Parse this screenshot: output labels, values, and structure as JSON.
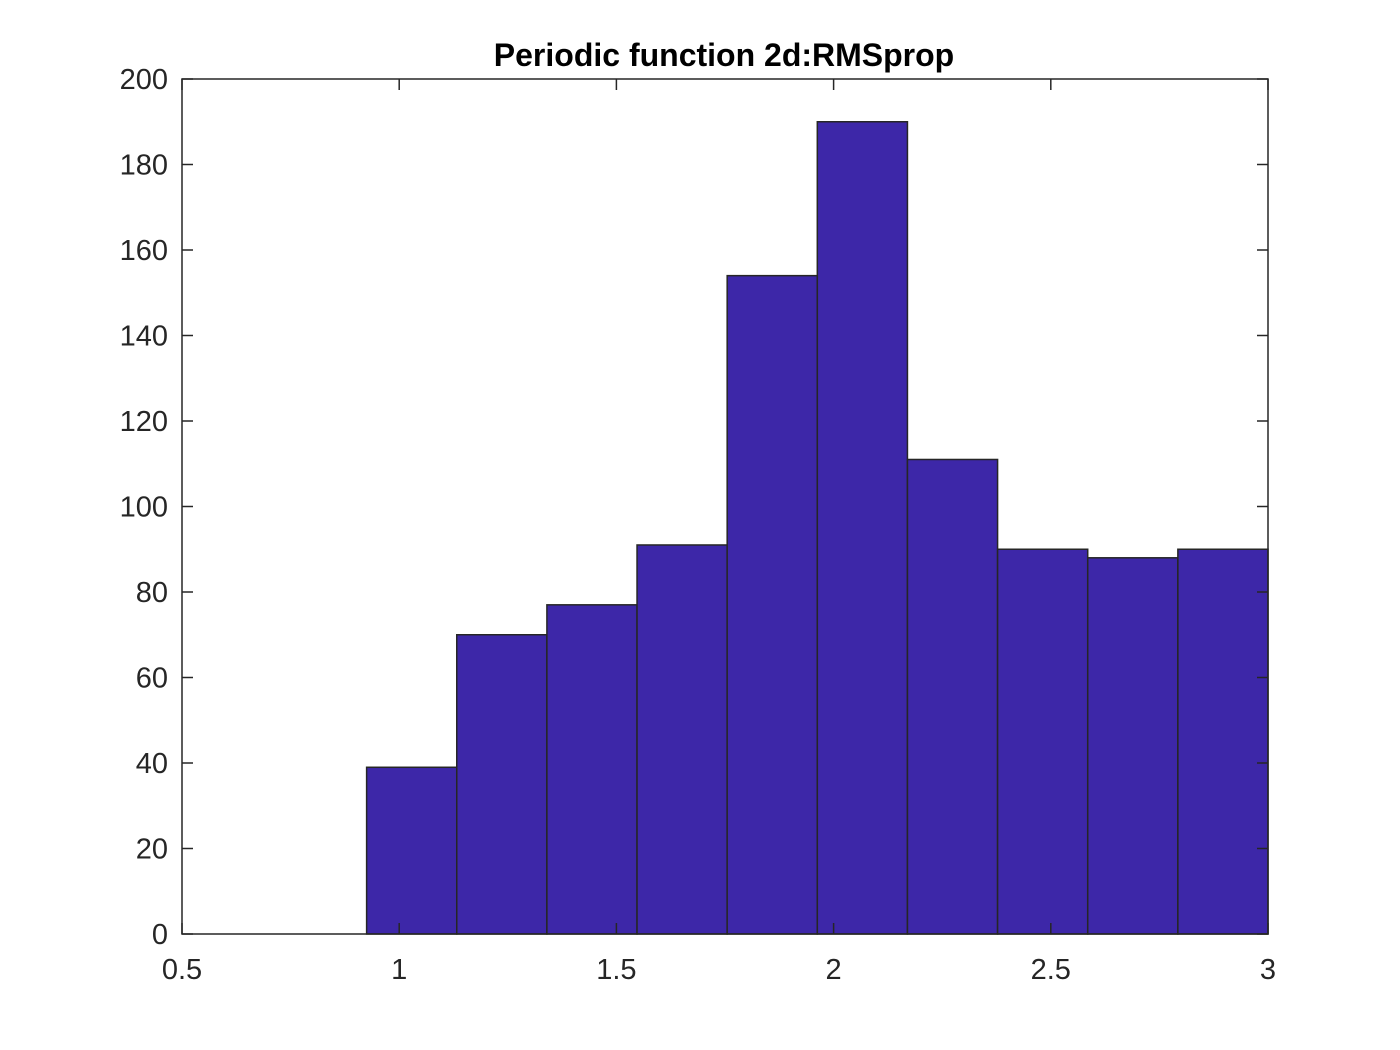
{
  "chart_data": {
    "type": "bar",
    "title": "Periodic function 2d:RMSprop",
    "xlabel": "",
    "ylabel": "",
    "xlim": [
      0.5,
      3
    ],
    "ylim": [
      0,
      200
    ],
    "xticks": [
      0.5,
      1,
      1.5,
      2,
      2.5,
      3
    ],
    "xtick_labels": [
      "0.5",
      "1",
      "1.5",
      "2",
      "2.5",
      "3"
    ],
    "yticks": [
      0,
      20,
      40,
      60,
      80,
      100,
      120,
      140,
      160,
      180,
      200
    ],
    "ytick_labels": [
      "0",
      "20",
      "40",
      "60",
      "80",
      "100",
      "120",
      "140",
      "160",
      "180",
      "200"
    ],
    "bin_edges": [
      0.925,
      1.1325,
      1.34,
      1.5475,
      1.755,
      1.9625,
      2.17,
      2.3775,
      2.585,
      2.7925,
      3.0
    ],
    "values": [
      39,
      70,
      77,
      91,
      154,
      190,
      111,
      90,
      88,
      90
    ],
    "bar_color": "#3d27a8",
    "grid": false,
    "box": true
  }
}
